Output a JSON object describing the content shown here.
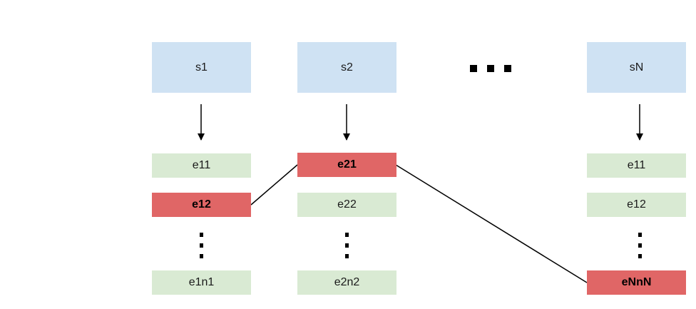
{
  "colors": {
    "source_fill": "#cfe2f3",
    "entity_fill": "#d9ead3",
    "selected_fill": "#e06666",
    "line": "#000000"
  },
  "sources": {
    "s1": "s1",
    "s2": "s2",
    "sN": "sN"
  },
  "columns": {
    "col1": {
      "e11": "e11",
      "e12": "e12",
      "e1n1": "e1n1"
    },
    "col2": {
      "e21": "e21",
      "e22": "e22",
      "e2n2": "e2n2"
    },
    "colN": {
      "e11": "e11",
      "e12": "e12",
      "eNnN": "eNnN"
    }
  },
  "selected": [
    "e12",
    "e21",
    "eNnN"
  ]
}
